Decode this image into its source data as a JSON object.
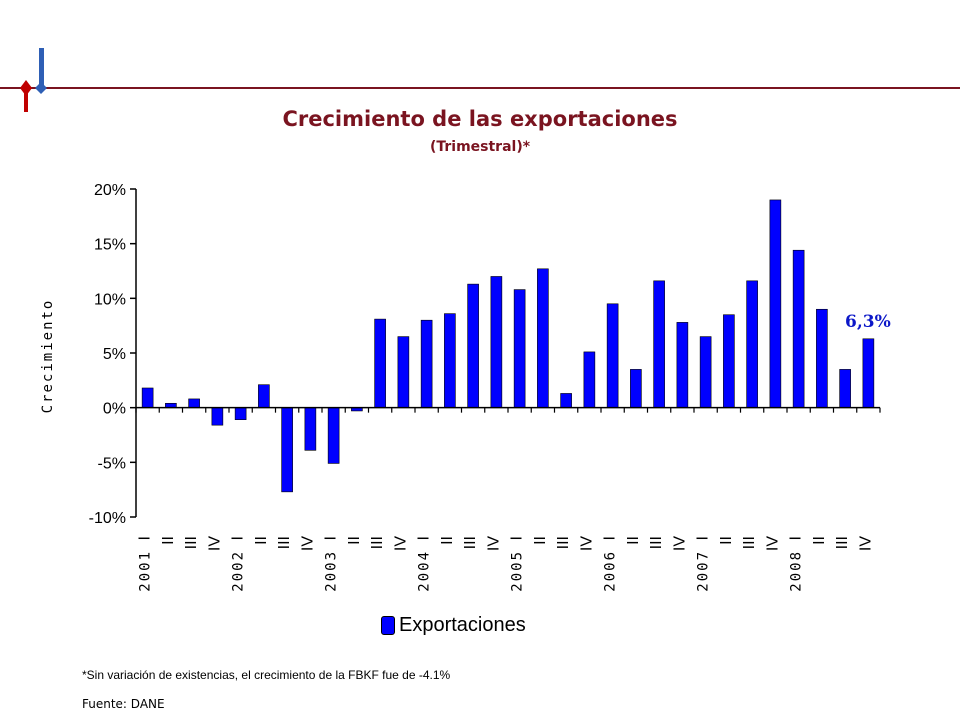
{
  "colors": {
    "bar": "#0000ff",
    "title": "#7a1420",
    "annotation": "#0b17c8",
    "deco_line": "#7a1420",
    "deco_red": "#c00000",
    "deco_blue": "#2e5fb5"
  },
  "chart_data": {
    "type": "bar",
    "title": "Crecimiento de las exportaciones",
    "subtitle": "(Trimestral)*",
    "ylabel": "Crecimiento",
    "xlabel": "",
    "ylim": [
      -10,
      20
    ],
    "yticks": [
      20,
      15,
      10,
      5,
      0,
      -5,
      -10
    ],
    "ytick_labels": [
      "20%",
      "15%",
      "10%",
      "5%",
      "0%",
      "-5%",
      "-10%"
    ],
    "quarter_labels": [
      "I",
      "II",
      "III",
      "IV",
      "I",
      "II",
      "III",
      "IV",
      "I",
      "II",
      "III",
      "IV",
      "I",
      "II",
      "III",
      "IV",
      "I",
      "II",
      "III",
      "IV",
      "I",
      "II",
      "III",
      "IV",
      "I",
      "II",
      "III",
      "IV",
      "I",
      "II",
      "III",
      "IV"
    ],
    "years": [
      "2001",
      "2002",
      "2003",
      "2004",
      "2005",
      "2006",
      "2007",
      "2008"
    ],
    "series": [
      {
        "name": "Exportaciones",
        "values": [
          1.8,
          0.4,
          0.8,
          -1.6,
          -1.1,
          2.1,
          -7.7,
          -3.9,
          -5.1,
          -0.3,
          8.1,
          6.5,
          8.0,
          8.6,
          11.3,
          12.0,
          10.8,
          12.7,
          1.3,
          5.1,
          9.5,
          3.5,
          11.6,
          7.8,
          6.5,
          8.5,
          11.6,
          19.0,
          14.4,
          9.0,
          3.5,
          6.3
        ]
      }
    ],
    "annotation": "6,3%",
    "legend": "bottom-center"
  },
  "footnote": "*Sin variación de existencias, el crecimiento de la FBKF fue de -4.1%",
  "source": "Fuente: DANE"
}
